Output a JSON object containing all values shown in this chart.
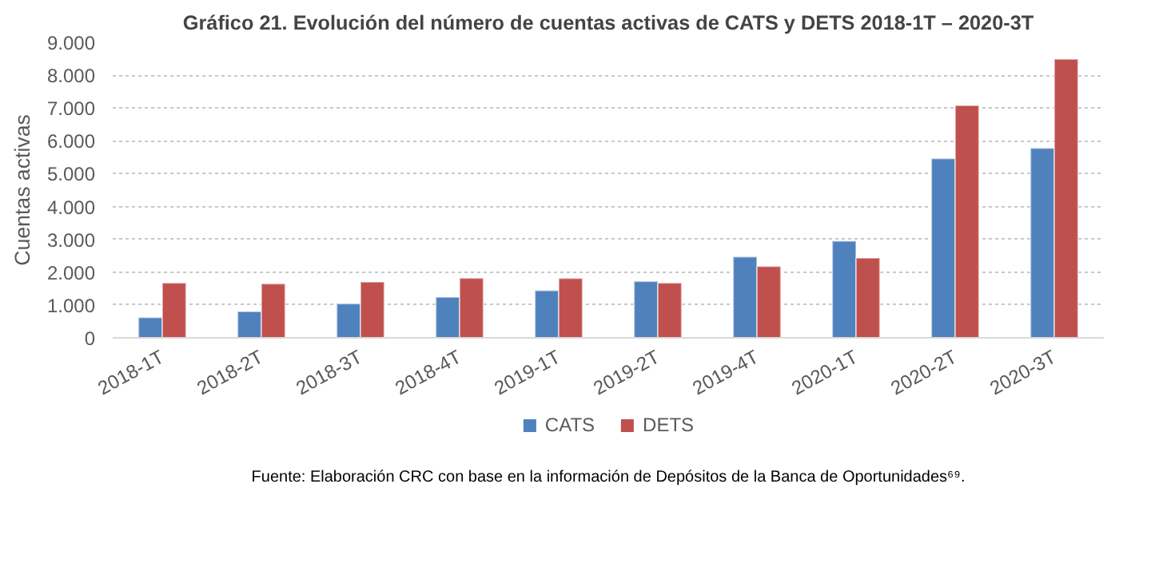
{
  "chart_data": {
    "type": "bar",
    "title": "Gráfico 21. Evolución del número de cuentas activas de CATS y DETS 2018-1T – 2020-3T",
    "ylabel": "Cuentas activas",
    "categories": [
      "2018-1T",
      "2018-2T",
      "2018-3T",
      "2018-4T",
      "2019-1T",
      "2019-2T",
      "2019-4T",
      "2020-1T",
      "2020-2T",
      "2020-3T"
    ],
    "series": [
      {
        "name": "CATS",
        "color": "#4f81bd",
        "values": [
          620,
          800,
          1040,
          1240,
          1440,
          1720,
          2470,
          2950,
          5460,
          5780
        ]
      },
      {
        "name": "DETS",
        "color": "#c0504d",
        "values": [
          1670,
          1650,
          1700,
          1820,
          1810,
          1670,
          2180,
          2430,
          7080,
          8490
        ]
      }
    ],
    "ylim": [
      0,
      9000
    ],
    "yticks": [
      0,
      {
        "value": 1000,
        "label": "1.000"
      },
      {
        "value": 2000,
        "label": "2.000"
      },
      {
        "value": 3000,
        "label": "3.000"
      },
      {
        "value": 4000,
        "label": "4.000"
      },
      {
        "value": 5000,
        "label": "5.000"
      },
      {
        "value": 6000,
        "label": "6.000"
      },
      {
        "value": 7000,
        "label": "7.000"
      },
      {
        "value": 8000,
        "label": "8.000"
      },
      {
        "value": 9000,
        "label": "9.000"
      }
    ],
    "grid": "y",
    "legend": "bottom",
    "annotations": [
      "Fuente: Elaboración CRC con base en la información de Depósitos de la Banca de Oportunidades⁶⁹."
    ]
  }
}
